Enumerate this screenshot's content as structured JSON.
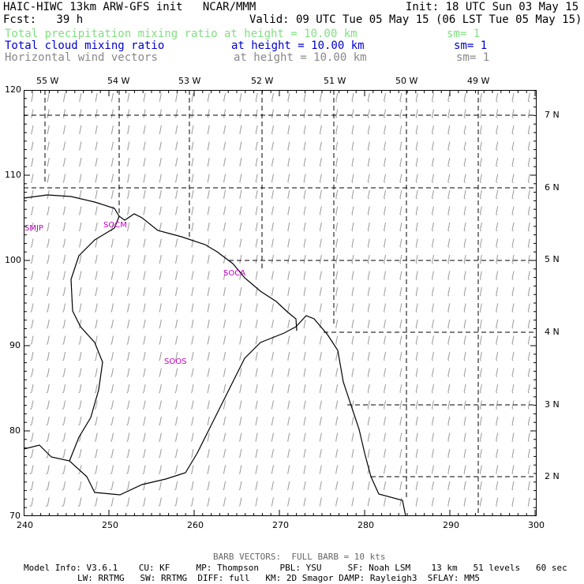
{
  "header": {
    "line1_left": "HAIC-HIWC 13km ARW-GFS init   NCAR/MMM",
    "line1_right": "Init: 18 UTC Sun 03 May 15",
    "line2_left": "Fcst:   39 h",
    "line2_right": "Valid: 09 UTC Tue 05 May 15 (06 LST Tue 05 May 15)",
    "fields": [
      {
        "name": "Total precipitation mixing ratio",
        "height": "at height = 10.00 km",
        "sm": "sm= 1",
        "color": "#80e080"
      },
      {
        "name": "Total cloud mixing ratio",
        "height": "at height = 10.00 km",
        "sm": "sm= 1",
        "color": "#0000cc"
      },
      {
        "name": "Horizontal wind vectors",
        "height": "at height = 10.00 km",
        "sm": "sm= 1",
        "color": "#888888"
      }
    ]
  },
  "axes": {
    "left_ticks": [
      "120",
      "110",
      "100",
      "90",
      "80",
      "70"
    ],
    "bottom_ticks": [
      "240",
      "250",
      "260",
      "270",
      "280",
      "290",
      "300"
    ],
    "top_lon_labels": [
      "55 W",
      "54 W",
      "53 W",
      "52 W",
      "51 W",
      "50 W",
      "49 W"
    ],
    "right_lat_labels": [
      "7 N",
      "6 N",
      "5 N",
      "4 N",
      "3 N",
      "2 N"
    ]
  },
  "stations": [
    "SMJP",
    "SOCM",
    "SOCA",
    "SOOS"
  ],
  "footer": {
    "barb_note": "BARB VECTORS:  FULL BARB = 10 kts",
    "model_line1": "Model Info: V3.6.1    CU: KF     MP: Thompson    PBL: YSU     SF: Noah LSM    13 km   51 levels   60 sec",
    "model_line2": "LW: RRTMG   SW: RRTMG  DIFF: full   KM: 2D Smagor DAMP: Rayleigh3  SFLAY: MM5"
  }
}
